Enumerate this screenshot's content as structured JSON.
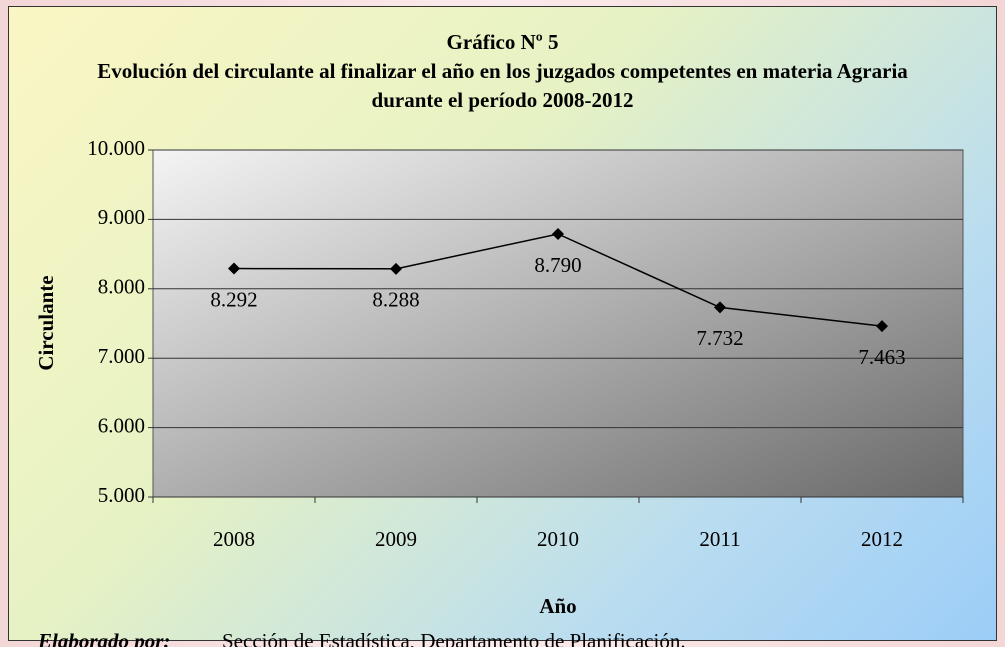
{
  "chart_data": {
    "type": "line",
    "title": "Gráfico Nº 5",
    "subtitle": "Evolución del circulante al finalizar el año en los juzgados competentes en materia Agraria durante el período 2008-2012",
    "x_label": "Año",
    "y_label": "Circulante",
    "categories": [
      "2008",
      "2009",
      "2010",
      "2011",
      "2012"
    ],
    "series": [
      {
        "name": "Circulante",
        "color": "#000000",
        "values": [
          8292,
          8288,
          8790,
          7732,
          7463
        ],
        "value_labels": [
          "8.292",
          "8.288",
          "8.790",
          "7.732",
          "7.463"
        ]
      }
    ],
    "ylim": [
      5000,
      10000
    ],
    "yticks": [
      {
        "value": 5000,
        "label": "5.000"
      },
      {
        "value": 6000,
        "label": "6.000"
      },
      {
        "value": 7000,
        "label": "7.000"
      },
      {
        "value": 8000,
        "label": "8.000"
      },
      {
        "value": 9000,
        "label": "9.000"
      },
      {
        "value": 10000,
        "label": "10.000"
      }
    ],
    "grid": true,
    "note_label": "Elaborado por:",
    "note": "Sección de Estadística, Departamento de Planificación."
  }
}
